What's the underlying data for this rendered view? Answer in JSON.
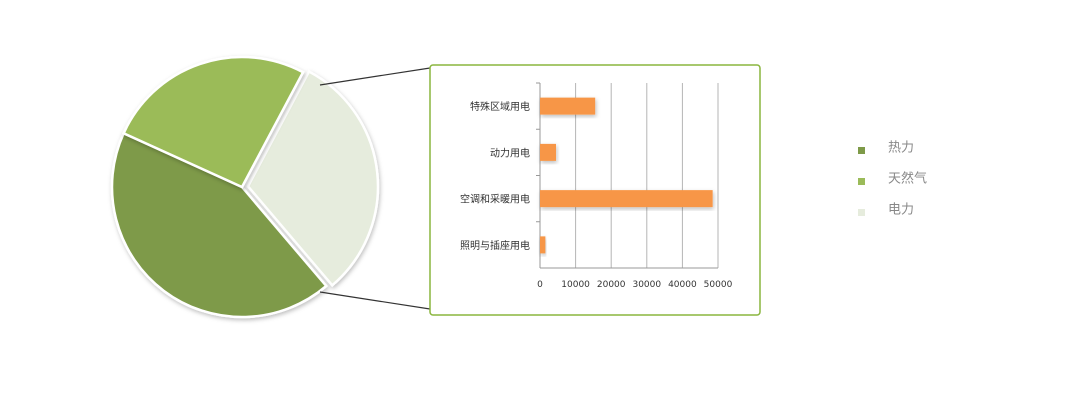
{
  "chart_data": [
    {
      "type": "pie",
      "title": "",
      "slices": [
        {
          "label": "热力",
          "value": 43,
          "color": "#7e9a48"
        },
        {
          "label": "天然气",
          "value": 26,
          "color": "#9bbb59"
        },
        {
          "label": "电力",
          "value": 31,
          "color": "#e6ecdd"
        }
      ],
      "legend": {
        "placement": "right"
      },
      "exploded_slice": "电力"
    },
    {
      "type": "bar",
      "orientation": "horizontal",
      "title": "",
      "categories": [
        "特殊区域用电",
        "动力用电",
        "空调和采暖用电",
        "照明与插座用电"
      ],
      "values": [
        15500,
        4500,
        48500,
        1500
      ],
      "xlim": [
        0,
        50000
      ],
      "xticks": [
        0,
        10000,
        20000,
        30000,
        40000,
        50000
      ],
      "xtick_labels": [
        "0",
        "10000",
        "20000",
        "30000",
        "40000",
        "50000"
      ],
      "grid": true,
      "bar_color": "#f79646",
      "frame_color": "#8ab53f"
    }
  ]
}
